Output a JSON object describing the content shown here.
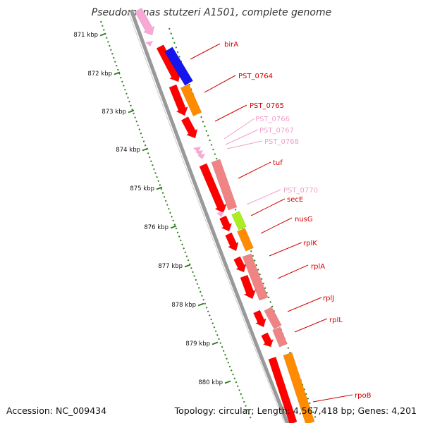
{
  "title": "Pseudomonas stutzeri A1501, complete genome",
  "footer": {
    "accession": "Accession: NC_009434",
    "stats": "Topology: circular; Length: 4,567,418 bp; Genes: 4,201"
  },
  "colors": {
    "backbone": "#999999",
    "tick": "#2e7d1e",
    "gene_red": "#ff0000",
    "label_red": "#d40000",
    "label_pink": "#f0a0c8"
  },
  "scale_labels": [
    "871 kbp",
    "872 kbp",
    "873 kbp",
    "874 kbp",
    "875 kbp",
    "876 kbp",
    "877 kbp",
    "878 kbp",
    "879 kbp",
    "880 kbp"
  ],
  "gene_labels": [
    {
      "name": "birA",
      "color": "red"
    },
    {
      "name": "PST_0764",
      "color": "red"
    },
    {
      "name": "PST_0765",
      "color": "red"
    },
    {
      "name": "PST_0766",
      "color": "pink"
    },
    {
      "name": "PST_0767",
      "color": "pink"
    },
    {
      "name": "PST_0768",
      "color": "pink"
    },
    {
      "name": "tuf",
      "color": "red"
    },
    {
      "name": "PST_0770",
      "color": "pink"
    },
    {
      "name": "secE",
      "color": "red"
    },
    {
      "name": "nusG",
      "color": "red"
    },
    {
      "name": "rplK",
      "color": "red"
    },
    {
      "name": "rplA",
      "color": "red"
    },
    {
      "name": "rplJ",
      "color": "red"
    },
    {
      "name": "rplL",
      "color": "red"
    },
    {
      "name": "rpoB",
      "color": "red"
    }
  ]
}
